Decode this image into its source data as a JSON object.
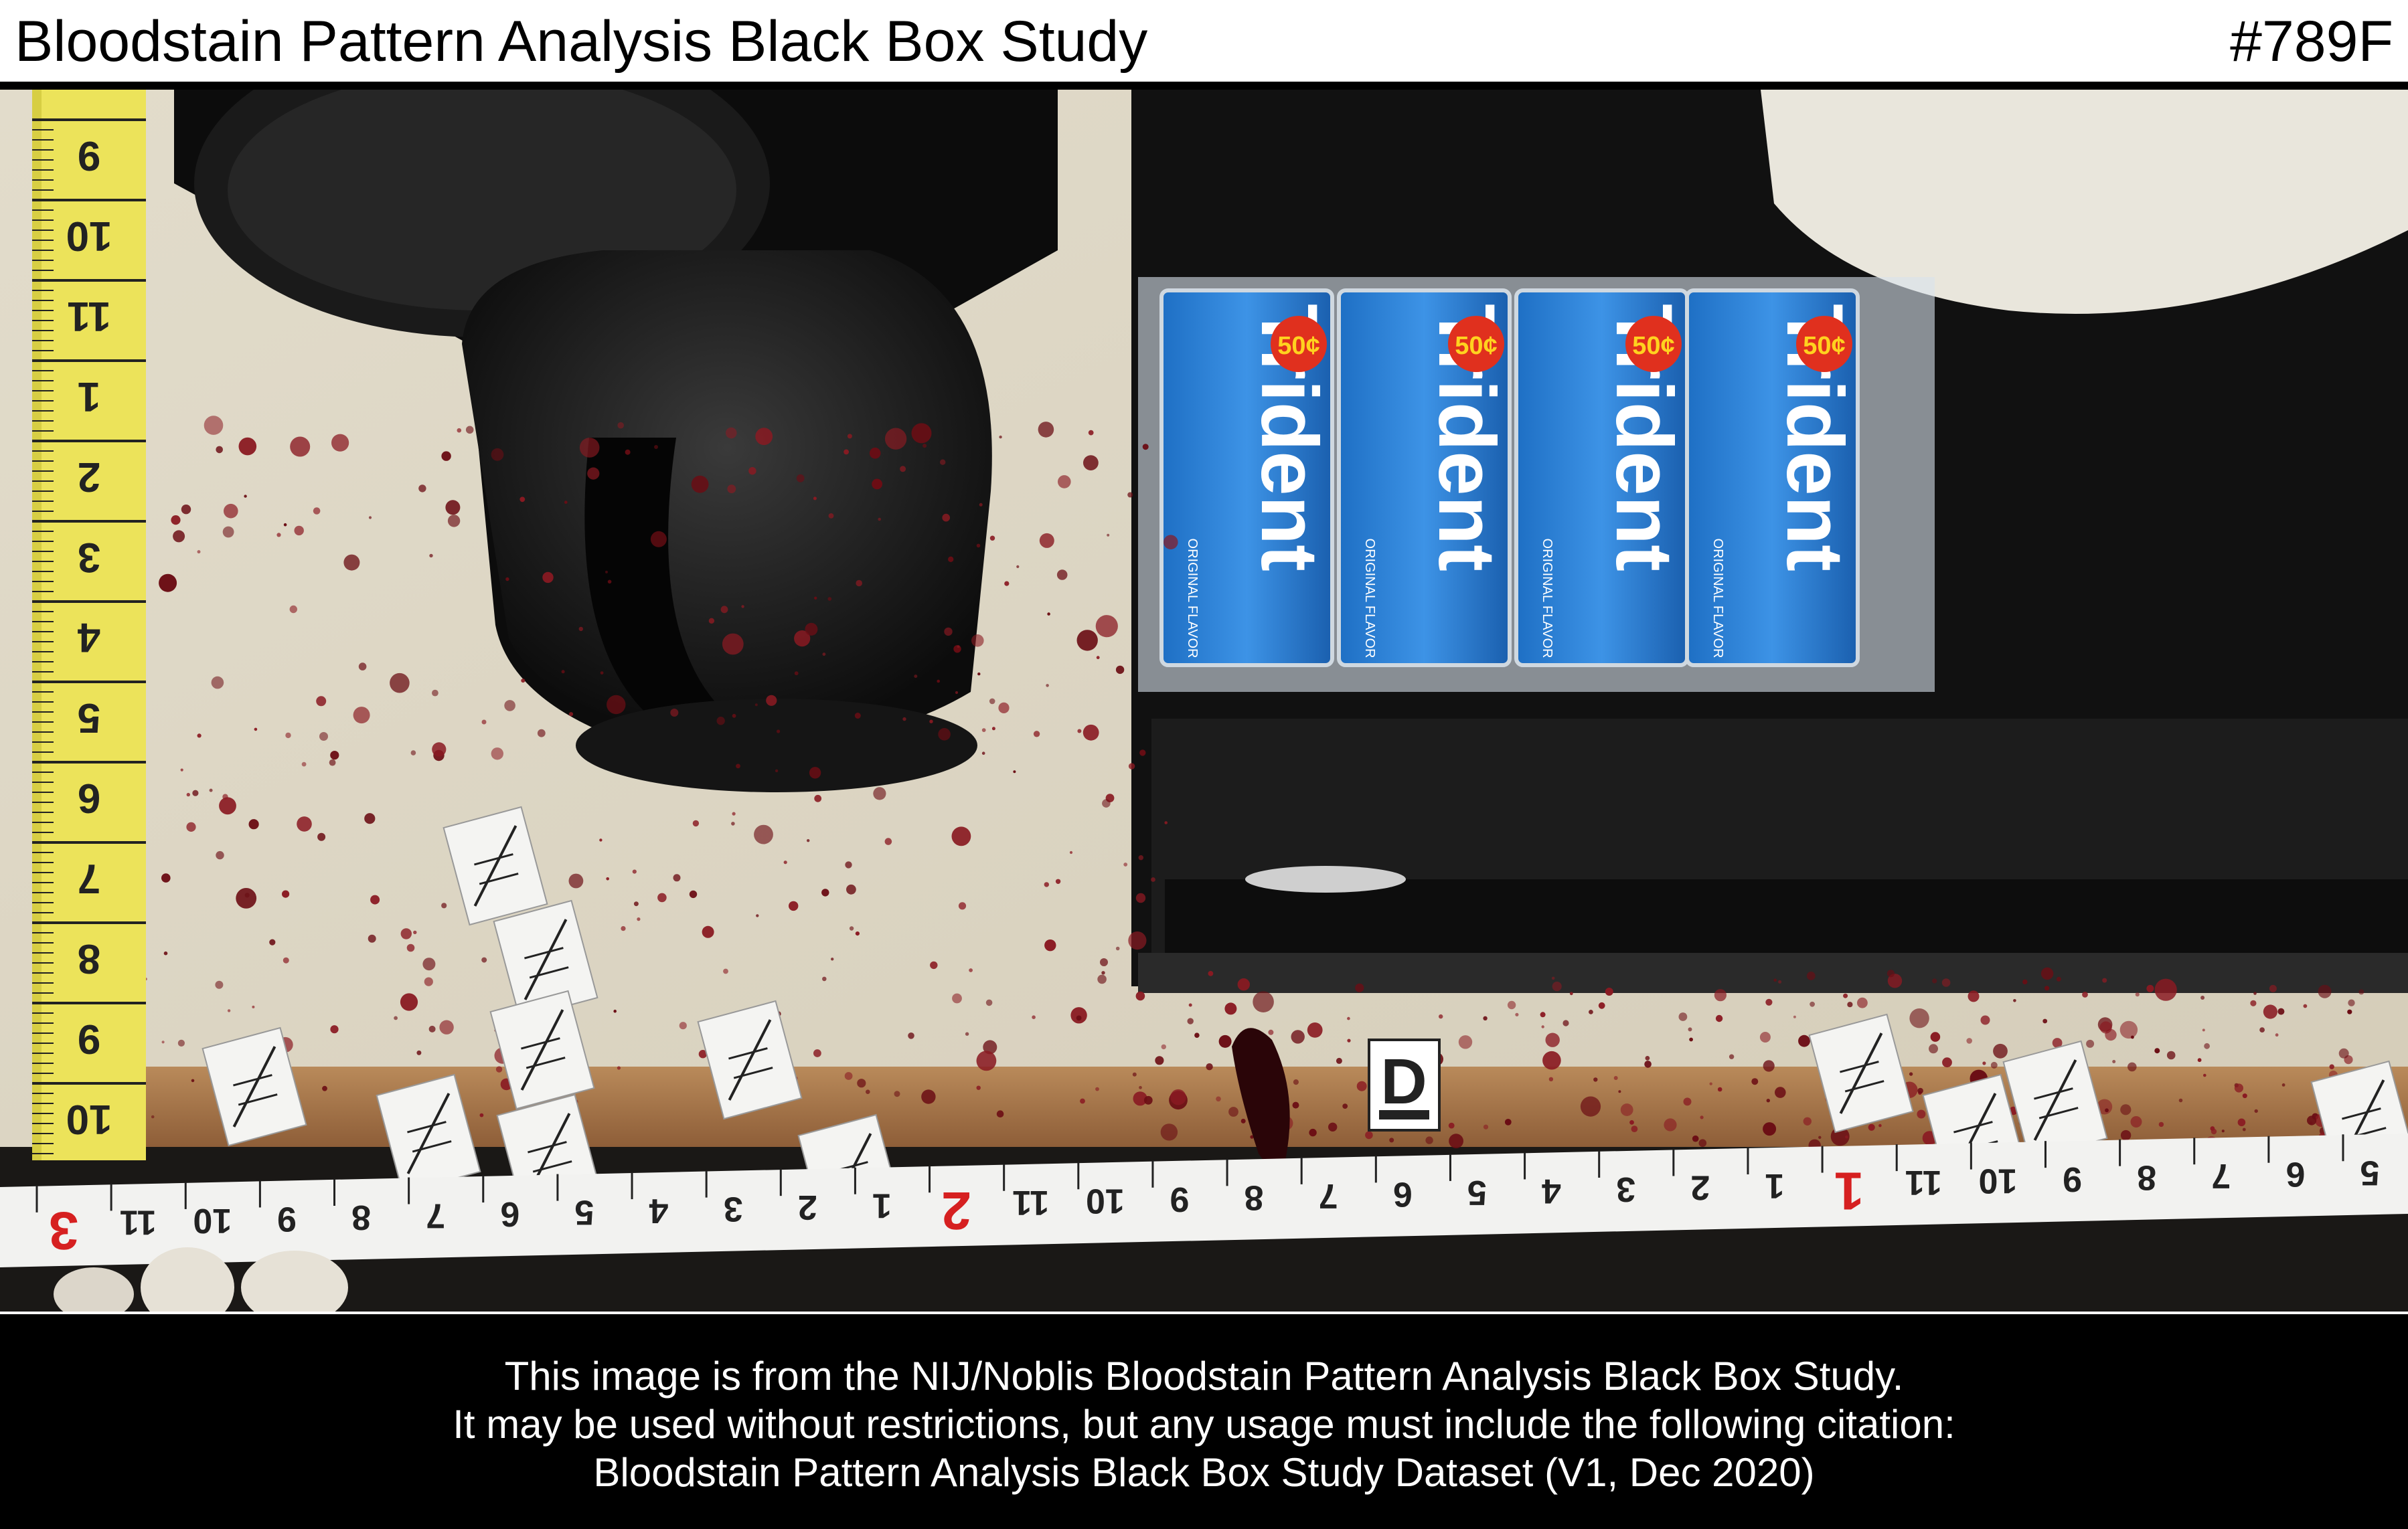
{
  "header": {
    "title": "Bloodstain Pattern Analysis Black Box Study",
    "image_id": "#789F"
  },
  "photo": {
    "evidence_marker": "D",
    "gum_brand": "Trident",
    "gum_price": "50¢",
    "gum_flavor": "ORIGINAL FLAVOR",
    "yellow_tape_numbers": [
      "9",
      "10",
      "11",
      "1",
      "2",
      "3",
      "4",
      "5",
      "6",
      "7",
      "8",
      "9",
      "10"
    ],
    "white_tape_numbers": [
      "3",
      "11",
      "10",
      "9",
      "8",
      "7",
      "6",
      "5",
      "4",
      "3",
      "2",
      "1",
      "2",
      "11",
      "10",
      "9",
      "8",
      "7",
      "6",
      "5",
      "4",
      "3",
      "2",
      "1",
      "1",
      "11",
      "10",
      "9",
      "8",
      "7",
      "6",
      "5"
    ]
  },
  "footer": {
    "line1": "This image is from the NIJ/Noblis Bloodstain Pattern Analysis Black Box Study.",
    "line2": "It may be used without restrictions, but any usage must include the following citation:",
    "line3": "Bloodstain Pattern Analysis Black Box Study Dataset (V1, Dec 2020)"
  }
}
